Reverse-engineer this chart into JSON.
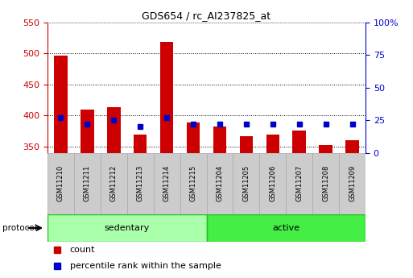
{
  "title": "GDS654 / rc_AI237825_at",
  "samples": [
    "GSM11210",
    "GSM11211",
    "GSM11212",
    "GSM11213",
    "GSM11214",
    "GSM11215",
    "GSM11204",
    "GSM11205",
    "GSM11206",
    "GSM11207",
    "GSM11208",
    "GSM11209"
  ],
  "counts": [
    497,
    409,
    414,
    369,
    519,
    389,
    383,
    367,
    369,
    376,
    353,
    360
  ],
  "percentiles": [
    27,
    22,
    25,
    20,
    27,
    22,
    22,
    22,
    22,
    22,
    22,
    22
  ],
  "ylim_left": [
    340,
    550
  ],
  "ylim_right": [
    0,
    100
  ],
  "yticks_left": [
    350,
    400,
    450,
    500,
    550
  ],
  "yticks_right": [
    0,
    25,
    50,
    75,
    100
  ],
  "ytick_right_labels": [
    "0",
    "25",
    "50",
    "75",
    "100%"
  ],
  "groups": [
    {
      "label": "sedentary",
      "start": 0,
      "end": 6,
      "color": "#aaffaa"
    },
    {
      "label": "active",
      "start": 6,
      "end": 12,
      "color": "#44ee44"
    }
  ],
  "bar_color": "#cc0000",
  "dot_color": "#0000cc",
  "axis_left_color": "#cc0000",
  "axis_right_color": "#0000cc",
  "bg_color": "#ffffff",
  "sample_box_color": "#cccccc",
  "sample_box_edge": "#aaaaaa",
  "protocol_label": "protocol",
  "legend_count": "count",
  "legend_percentile": "percentile rank within the sample",
  "bar_width": 0.5
}
